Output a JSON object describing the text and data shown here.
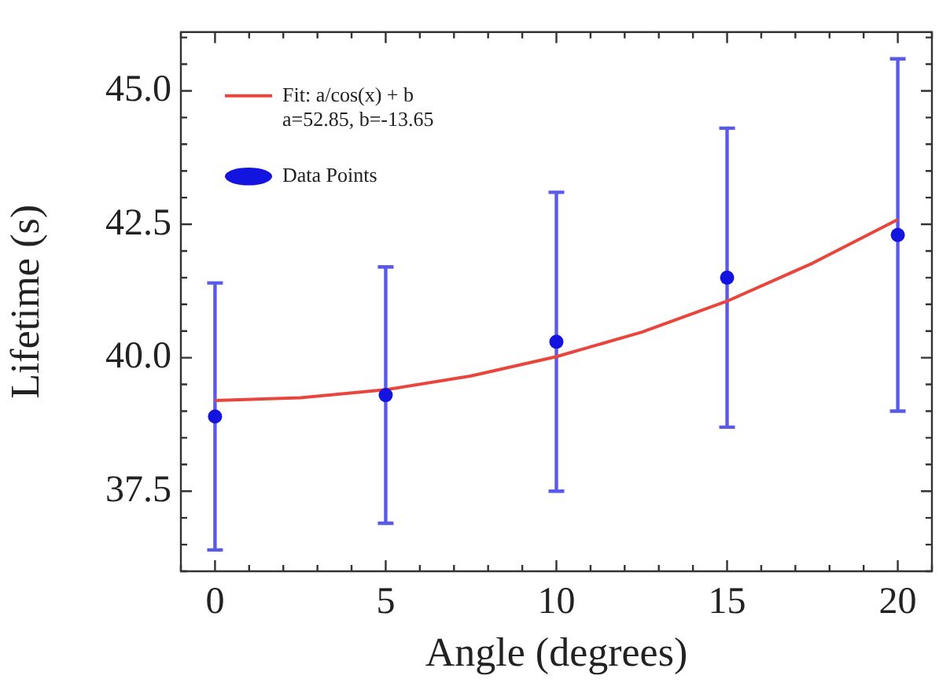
{
  "chart_data": {
    "type": "scatter",
    "xlabel": "Angle (degrees)",
    "ylabel": "Lifetime (s)",
    "xlim": [
      -1,
      21
    ],
    "xticks": [
      0,
      5,
      10,
      15,
      20
    ],
    "ylim": [
      36.0,
      46.1
    ],
    "yticks": [
      37.5,
      {
        "value": 40,
        "label": "40.0"
      },
      42.5,
      {
        "value": 45,
        "label": "45.0"
      }
    ],
    "grid": false,
    "legend": "top left",
    "series": [
      {
        "type": "line",
        "name": "Fit: a/cos(x) + b\na=52.85, b=-13.65",
        "color": "#e8463c",
        "line_style": "solid",
        "marker": "none",
        "x": [
          0,
          2.5,
          5,
          7.5,
          10,
          12.5,
          15,
          17.5,
          20
        ],
        "values": [
          39.2,
          39.25,
          39.4,
          39.66,
          40.02,
          40.48,
          41.06,
          41.77,
          42.59
        ]
      },
      {
        "type": "scatter",
        "name": "Data Points",
        "color": "#1414e0",
        "marker": "circle",
        "x": [
          0,
          5,
          10,
          15,
          20
        ],
        "values": [
          38.9,
          39.3,
          40.3,
          41.5,
          42.3
        ],
        "errors": [
          2.5,
          2.4,
          2.8,
          2.8,
          3.3
        ]
      }
    ]
  }
}
